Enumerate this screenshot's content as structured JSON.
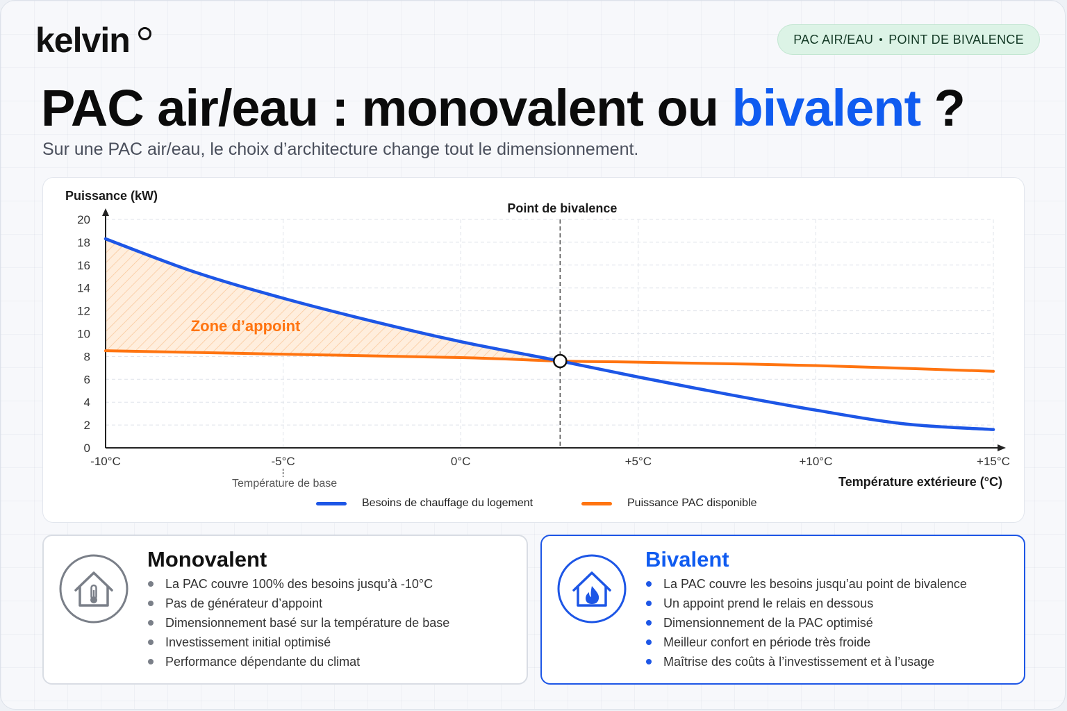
{
  "brand": {
    "name": "kelvin"
  },
  "badge": {
    "left": "PAC AIR/EAU",
    "right": "POINT DE BIVALENCE"
  },
  "header": {
    "title_main": "PAC air/eau : monovalent ou ",
    "title_accent": "bivalent",
    "title_end": " ?",
    "subtitle": "Sur une PAC air/eau, le choix d’architecture change tout le dimensionnement."
  },
  "colors": {
    "accent_blue": "#0f5bf0",
    "demand_line": "#1d56e6",
    "pac_line": "#ff7410",
    "zone_fill": "#ffe8d4",
    "badge_bg": "#dcf3e6"
  },
  "chart_data": {
    "type": "line",
    "ylabel": "Puissance (kW)",
    "xlabel": "Température extérieure (°C)",
    "ylim": [
      0,
      20
    ],
    "yticks": [
      0,
      2,
      4,
      6,
      8,
      10,
      12,
      14,
      16,
      18,
      20
    ],
    "xlim": [
      -10,
      15
    ],
    "xticks": [
      -10,
      -5,
      0,
      5,
      10,
      15
    ],
    "xtick_labels": [
      "-10°C",
      "-5°C",
      "0°C",
      "+5°C",
      "+10°C",
      "+15°C"
    ],
    "grid": true,
    "series": [
      {
        "name": "Besoins de chauffage du logement",
        "color": "#1d56e6",
        "x": [
          -10,
          -7.5,
          -5,
          -2.5,
          0,
          2.8,
          5,
          7.5,
          10,
          12.5,
          15
        ],
        "y": [
          18.3,
          15.4,
          13.1,
          11.1,
          9.3,
          7.6,
          6.2,
          4.7,
          3.3,
          2.1,
          1.6
        ]
      },
      {
        "name": "Puissance PAC disponible",
        "color": "#ff7410",
        "x": [
          -10,
          -5,
          0,
          2.8,
          5,
          10,
          15
        ],
        "y": [
          8.5,
          8.2,
          7.9,
          7.6,
          7.5,
          7.2,
          6.7
        ]
      }
    ],
    "annotations": {
      "bivalence_label": "Point de bivalence",
      "bivalence_x": 2.8,
      "bivalence_y": 7.6,
      "zone_label": "Zone d’appoint",
      "zone_label_x": -7.6,
      "zone_label_y": 10.2,
      "base_temp_label": "Température de base",
      "base_temp_x": -5
    }
  },
  "legend": {
    "demand": "Besoins de chauffage du logement",
    "pac": "Puissance PAC disponible"
  },
  "cards": {
    "mono": {
      "title": "Monovalent",
      "icon": "house-thermometer-icon",
      "items": [
        "La PAC couvre 100% des besoins jusqu’à -10°C",
        "Pas de générateur d’appoint",
        "Dimensionnement basé sur la température de base",
        "Investissement initial optimisé",
        "Performance dépendante du climat"
      ]
    },
    "bi": {
      "title": "Bivalent",
      "icon": "house-flame-icon",
      "items": [
        "La PAC couvre les besoins jusqu’au point de bivalence",
        "Un appoint prend le relais en dessous",
        "Dimensionnement de la PAC optimisé",
        "Meilleur confort en période très froide",
        "Maîtrise des coûts à l’investissement et à l’usage"
      ]
    }
  }
}
